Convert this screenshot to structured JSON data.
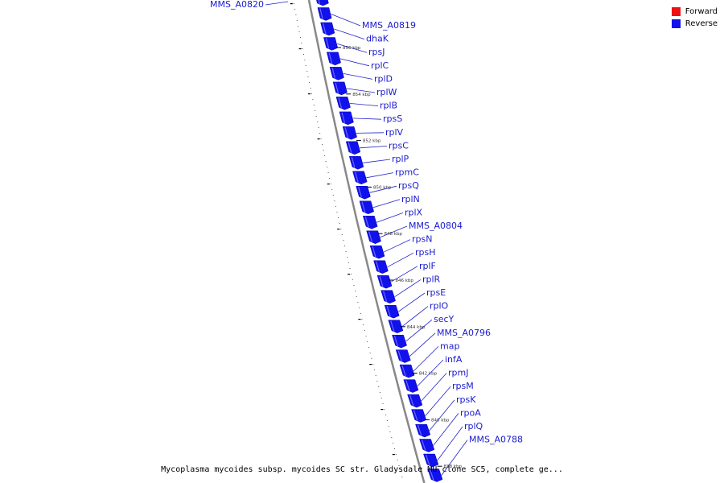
{
  "legend": {
    "items": [
      {
        "label": "Forward",
        "color": "#ee1111"
      },
      {
        "label": "Reverse",
        "color": "#1111ee"
      }
    ]
  },
  "caption": "Mycoplasma mycoides subsp. mycoides SC str. Gladysdale MU clone SC5, complete ge...",
  "colors": {
    "forward": "#ee1111",
    "reverse": "#1111ee",
    "backbone": "#888888"
  },
  "genes": [
    {
      "name": "MMS_A0820",
      "side": "left"
    },
    {
      "name": "MMS_A0819"
    },
    {
      "name": "dhaK"
    },
    {
      "name": "rpsJ"
    },
    {
      "name": "rplC"
    },
    {
      "name": "rplD"
    },
    {
      "name": "rplW"
    },
    {
      "name": "rplB"
    },
    {
      "name": "rpsS"
    },
    {
      "name": "rplV"
    },
    {
      "name": "rpsC"
    },
    {
      "name": "rplP"
    },
    {
      "name": "rpmC"
    },
    {
      "name": "rpsQ"
    },
    {
      "name": "rplN"
    },
    {
      "name": "rplX"
    },
    {
      "name": "MMS_A0804"
    },
    {
      "name": "rpsN"
    },
    {
      "name": "rpsH"
    },
    {
      "name": "rplF"
    },
    {
      "name": "rplR"
    },
    {
      "name": "rpsE"
    },
    {
      "name": "rplO"
    },
    {
      "name": "secY"
    },
    {
      "name": "MMS_A0796"
    },
    {
      "name": "map"
    },
    {
      "name": "infA"
    },
    {
      "name": "rpmJ"
    },
    {
      "name": "rpsM"
    },
    {
      "name": "rpsK"
    },
    {
      "name": "rpoA"
    },
    {
      "name": "rplQ"
    },
    {
      "name": "MMS_A0788"
    }
  ],
  "ticks": [
    "856 kbp",
    "854 kbp",
    "852 kbp",
    "850 kbp",
    "848 kbp",
    "846 kbp",
    "844 kbp",
    "842 kbp",
    "840 kbp",
    "838 kbp"
  ]
}
